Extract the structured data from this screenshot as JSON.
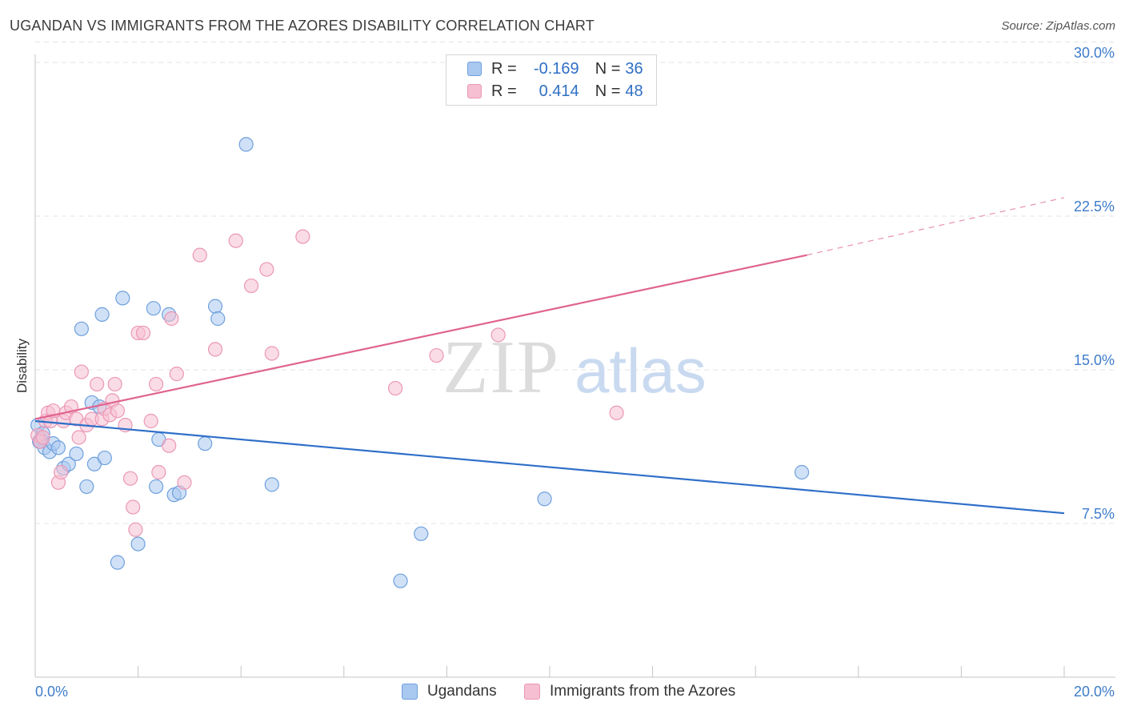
{
  "header": {
    "title": "UGANDAN VS IMMIGRANTS FROM THE AZORES DISABILITY CORRELATION CHART",
    "source": "Source: ZipAtlas.com"
  },
  "watermark": {
    "zip": "ZIP",
    "atlas": "atlas"
  },
  "legend": {
    "r_label": "R =",
    "n_label": "N =",
    "rows": [
      {
        "r": "-0.169",
        "n": "36"
      },
      {
        "r": "0.414",
        "n": "48"
      }
    ]
  },
  "colors": {
    "ugandans_fill": "#a9c8f0",
    "ugandans_stroke": "#6fa0dc",
    "ugandans_line": "#2f6fc9",
    "azores_fill": "#f6bfd2",
    "azores_stroke": "#eb97b6",
    "azores_line": "#e0648f",
    "tick_text": "#3d7cc9"
  },
  "chart_data": {
    "type": "scatter",
    "title": "UGANDAN VS IMMIGRANTS FROM THE AZORES DISABILITY CORRELATION CHART",
    "xlabel": "",
    "ylabel": "Disability",
    "xlim": [
      0,
      20
    ],
    "ylim": [
      0,
      30
    ],
    "x_tick_labels": [
      "0.0%",
      "20.0%"
    ],
    "y_ticks": [
      7.5,
      15.0,
      22.5,
      30.0
    ],
    "y_tick_labels": [
      "7.5%",
      "15.0%",
      "22.5%",
      "30.0%"
    ],
    "grid": true,
    "legend_position": "top-center",
    "series": [
      {
        "name": "Ugandans",
        "r": -0.169,
        "n": 36,
        "trend": {
          "x": [
            0,
            20
          ],
          "y": [
            12.5,
            8.0
          ]
        },
        "points": [
          [
            0.05,
            12.3
          ],
          [
            0.12,
            11.6
          ],
          [
            0.15,
            11.9
          ],
          [
            0.18,
            11.2
          ],
          [
            0.28,
            11.0
          ],
          [
            0.35,
            11.4
          ],
          [
            0.45,
            11.2
          ],
          [
            0.55,
            10.2
          ],
          [
            0.65,
            10.4
          ],
          [
            0.8,
            10.9
          ],
          [
            0.9,
            17.0
          ],
          [
            1.0,
            9.3
          ],
          [
            1.1,
            13.4
          ],
          [
            1.15,
            10.4
          ],
          [
            1.25,
            13.2
          ],
          [
            1.3,
            17.7
          ],
          [
            1.35,
            10.7
          ],
          [
            1.7,
            18.5
          ],
          [
            1.6,
            5.6
          ],
          [
            2.0,
            6.5
          ],
          [
            2.3,
            18.0
          ],
          [
            2.35,
            9.3
          ],
          [
            2.4,
            11.6
          ],
          [
            2.6,
            17.7
          ],
          [
            2.7,
            8.9
          ],
          [
            2.8,
            9.0
          ],
          [
            3.3,
            11.4
          ],
          [
            3.5,
            18.1
          ],
          [
            3.55,
            17.5
          ],
          [
            4.1,
            26.0
          ],
          [
            4.6,
            9.4
          ],
          [
            7.1,
            4.7
          ],
          [
            7.5,
            7.0
          ],
          [
            9.9,
            8.7
          ],
          [
            14.9,
            10.0
          ],
          [
            0.08,
            11.5
          ]
        ]
      },
      {
        "name": "Immigrants from the Azores",
        "r": 0.414,
        "n": 48,
        "trend": {
          "x": [
            0,
            15
          ],
          "y": [
            12.6,
            20.6
          ]
        },
        "trend_extension": {
          "x": [
            15,
            20
          ],
          "y": [
            20.6,
            23.4
          ]
        },
        "points": [
          [
            0.05,
            11.8
          ],
          [
            0.1,
            11.5
          ],
          [
            0.2,
            12.5
          ],
          [
            0.25,
            12.9
          ],
          [
            0.3,
            12.5
          ],
          [
            0.35,
            13.0
          ],
          [
            0.45,
            9.5
          ],
          [
            0.5,
            10.0
          ],
          [
            0.55,
            12.5
          ],
          [
            0.6,
            12.9
          ],
          [
            0.7,
            13.2
          ],
          [
            0.8,
            12.6
          ],
          [
            0.85,
            11.7
          ],
          [
            0.9,
            14.9
          ],
          [
            1.0,
            12.3
          ],
          [
            1.1,
            12.6
          ],
          [
            1.2,
            14.3
          ],
          [
            1.3,
            12.6
          ],
          [
            1.35,
            13.1
          ],
          [
            1.45,
            12.8
          ],
          [
            1.5,
            13.5
          ],
          [
            1.55,
            14.3
          ],
          [
            1.6,
            13.0
          ],
          [
            1.75,
            12.3
          ],
          [
            1.85,
            9.7
          ],
          [
            1.9,
            8.3
          ],
          [
            1.95,
            7.2
          ],
          [
            2.0,
            16.8
          ],
          [
            2.1,
            16.8
          ],
          [
            2.25,
            12.5
          ],
          [
            2.35,
            14.3
          ],
          [
            2.4,
            10.0
          ],
          [
            2.6,
            11.3
          ],
          [
            2.65,
            17.5
          ],
          [
            2.75,
            14.8
          ],
          [
            2.9,
            9.5
          ],
          [
            3.2,
            20.6
          ],
          [
            3.5,
            16.0
          ],
          [
            3.9,
            21.3
          ],
          [
            4.2,
            19.1
          ],
          [
            4.5,
            19.9
          ],
          [
            4.6,
            15.8
          ],
          [
            5.2,
            21.5
          ],
          [
            7.0,
            14.1
          ],
          [
            7.8,
            15.7
          ],
          [
            9.0,
            16.7
          ],
          [
            11.3,
            12.9
          ],
          [
            0.15,
            11.7
          ]
        ]
      }
    ]
  }
}
